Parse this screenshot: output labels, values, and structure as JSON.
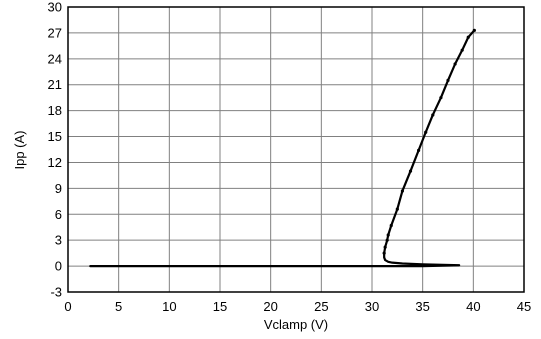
{
  "chart_data": {
    "type": "line",
    "title": "",
    "xlabel": "Vclamp (V)",
    "ylabel": "Ipp (A)",
    "xlim": [
      0,
      45
    ],
    "ylim": [
      -3,
      30
    ],
    "x_ticks": [
      0,
      5,
      10,
      15,
      20,
      25,
      30,
      35,
      40,
      45
    ],
    "y_ticks": [
      -3,
      0,
      3,
      6,
      9,
      12,
      15,
      18,
      21,
      24,
      27,
      30
    ],
    "x_tick_labels": [
      "0",
      "5",
      "10",
      "15",
      "20",
      "25",
      "30",
      "35",
      "40",
      "45"
    ],
    "y_tick_labels": [
      "-3",
      "0",
      "3",
      "6",
      "9",
      "12",
      "15",
      "18",
      "21",
      "24",
      "27",
      "30"
    ],
    "grid": true,
    "legend": "none",
    "colors": {
      "line": "#000000",
      "grid": "#808080",
      "frame": "#000000"
    },
    "series": [
      {
        "x": [
          2.2,
          10,
          20,
          30,
          35,
          37,
          38.6,
          37,
          35,
          33,
          32,
          31.6,
          31.3,
          31.2,
          31.2,
          31.3,
          31.5,
          31.6,
          31.9,
          32.5,
          33.0,
          33.8,
          34.6,
          35.3,
          36.0,
          36.8,
          37.5,
          38.2,
          38.9,
          39.5,
          40.1
        ],
        "y": [
          0,
          0,
          0,
          0,
          0,
          0.05,
          0.1,
          0.15,
          0.2,
          0.3,
          0.4,
          0.5,
          0.7,
          1.0,
          1.5,
          2.2,
          3.0,
          3.6,
          4.7,
          6.6,
          8.7,
          11.0,
          13.4,
          15.5,
          17.5,
          19.5,
          21.5,
          23.4,
          25.0,
          26.5,
          27.3
        ]
      }
    ]
  }
}
